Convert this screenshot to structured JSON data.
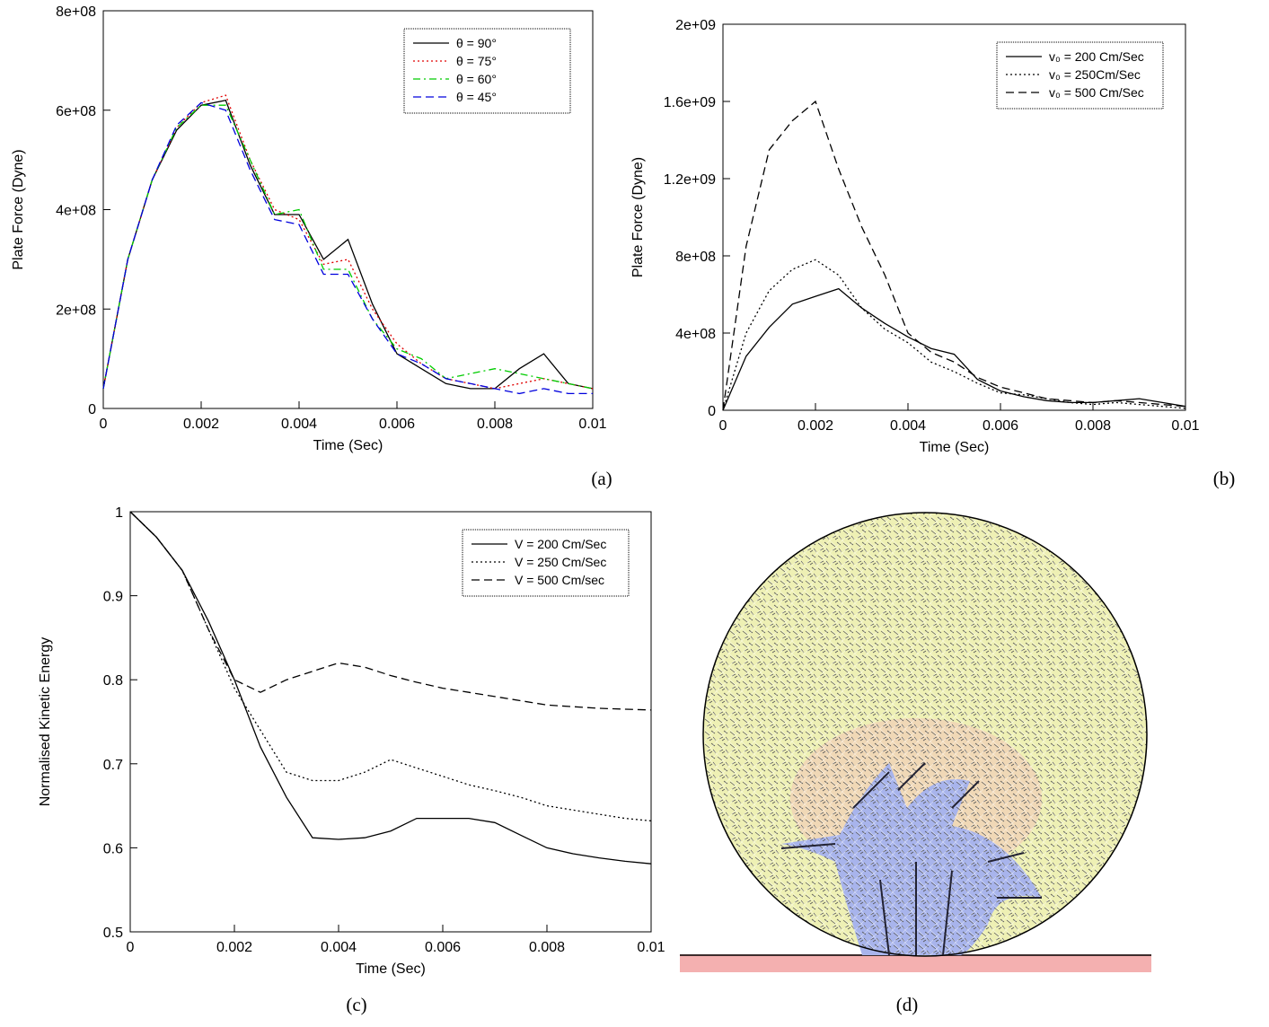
{
  "chart_data": [
    {
      "type": "line",
      "caption": "(a)",
      "x_label": "Time (Sec)",
      "y_label": "Plate Force (Dyne)",
      "x": [
        0,
        0.0005,
        0.001,
        0.0015,
        0.002,
        0.0025,
        0.003,
        0.0035,
        0.004,
        0.0045,
        0.005,
        0.0055,
        0.006,
        0.0065,
        0.007,
        0.0075,
        0.008,
        0.0085,
        0.009,
        0.0095,
        0.01
      ],
      "xlim": [
        0,
        0.01
      ],
      "xticks": [
        0,
        0.002,
        0.004,
        0.006,
        0.008,
        0.01
      ],
      "ylim": [
        0,
        800000000
      ],
      "yticks": [
        0,
        {
          "value": 200000000,
          "label": "2e+08"
        },
        {
          "value": 400000000,
          "label": "4e+08"
        },
        {
          "value": 600000000,
          "label": "6e+08"
        },
        {
          "value": 800000000,
          "label": "8e+08"
        }
      ],
      "legend": "upper right",
      "series": [
        {
          "name": "θ = 90°",
          "color": "#000000",
          "style": "solid",
          "values": [
            40000000,
            300000000,
            460000000,
            560000000,
            610000000,
            620000000,
            490000000,
            390000000,
            390000000,
            300000000,
            340000000,
            210000000,
            110000000,
            80000000,
            50000000,
            40000000,
            40000000,
            80000000,
            110000000,
            50000000,
            40000000
          ]
        },
        {
          "name": "θ = 75°",
          "color": "#e00000",
          "style": "dotted",
          "values": [
            40000000,
            300000000,
            460000000,
            565000000,
            615000000,
            630000000,
            500000000,
            400000000,
            380000000,
            290000000,
            300000000,
            200000000,
            130000000,
            90000000,
            60000000,
            50000000,
            40000000,
            50000000,
            60000000,
            50000000,
            40000000
          ]
        },
        {
          "name": "θ = 60°",
          "color": "#00cc00",
          "style": "dashdot",
          "values": [
            40000000,
            300000000,
            460000000,
            565000000,
            610000000,
            610000000,
            500000000,
            390000000,
            400000000,
            280000000,
            280000000,
            180000000,
            120000000,
            100000000,
            60000000,
            70000000,
            80000000,
            70000000,
            60000000,
            50000000,
            40000000
          ]
        },
        {
          "name": "θ = 45°",
          "color": "#0000dd",
          "style": "dashed",
          "values": [
            40000000,
            300000000,
            460000000,
            570000000,
            615000000,
            600000000,
            480000000,
            380000000,
            370000000,
            270000000,
            270000000,
            180000000,
            110000000,
            90000000,
            60000000,
            50000000,
            40000000,
            30000000,
            40000000,
            30000000,
            30000000
          ]
        }
      ]
    },
    {
      "type": "line",
      "caption": "(b)",
      "x_label": "Time (Sec)",
      "y_label": "Plate Force (Dyne)",
      "x": [
        0,
        0.0005,
        0.001,
        0.0015,
        0.002,
        0.0025,
        0.003,
        0.0035,
        0.004,
        0.0045,
        0.005,
        0.0055,
        0.006,
        0.0065,
        0.007,
        0.0075,
        0.008,
        0.0085,
        0.009,
        0.0095,
        0.01
      ],
      "xlim": [
        0,
        0.01
      ],
      "xticks": [
        0,
        0.002,
        0.004,
        0.006,
        0.008,
        0.01
      ],
      "ylim": [
        0,
        2000000000
      ],
      "yticks": [
        0,
        {
          "value": 400000000,
          "label": "4e+08"
        },
        {
          "value": 800000000,
          "label": "8e+08"
        },
        {
          "value": 1200000000,
          "label": "1.2e+09"
        },
        {
          "value": 1600000000,
          "label": "1.6e+09"
        },
        {
          "value": 2000000000,
          "label": "2e+09"
        }
      ],
      "legend": "upper right",
      "series": [
        {
          "name": "v₀ = 200 Cm/Sec",
          "color": "#000000",
          "style": "solid",
          "values": [
            0,
            280000000,
            430000000,
            550000000,
            590000000,
            630000000,
            530000000,
            450000000,
            380000000,
            320000000,
            290000000,
            160000000,
            100000000,
            70000000,
            50000000,
            40000000,
            40000000,
            50000000,
            60000000,
            40000000,
            20000000
          ]
        },
        {
          "name": "v₀ = 250Cm/Sec",
          "color": "#000000",
          "style": "dotted",
          "values": [
            0,
            400000000,
            620000000,
            730000000,
            780000000,
            700000000,
            530000000,
            420000000,
            350000000,
            250000000,
            200000000,
            140000000,
            90000000,
            80000000,
            60000000,
            40000000,
            30000000,
            40000000,
            30000000,
            20000000,
            10000000
          ]
        },
        {
          "name": "v₀ = 500 Cm/Sec",
          "color": "#000000",
          "style": "dashed",
          "values": [
            0,
            850000000,
            1350000000,
            1500000000,
            1600000000,
            1250000000,
            950000000,
            700000000,
            400000000,
            300000000,
            250000000,
            170000000,
            120000000,
            90000000,
            60000000,
            50000000,
            40000000,
            50000000,
            40000000,
            30000000,
            20000000
          ]
        }
      ]
    },
    {
      "type": "line",
      "caption": "(c)",
      "x_label": "Time (Sec)",
      "y_label": "Normalised Kinetic Energy",
      "x": [
        0,
        0.0005,
        0.001,
        0.0015,
        0.002,
        0.0025,
        0.003,
        0.0035,
        0.004,
        0.0045,
        0.005,
        0.0055,
        0.006,
        0.0065,
        0.007,
        0.0075,
        0.008,
        0.0085,
        0.009,
        0.0095,
        0.01
      ],
      "xlim": [
        0,
        0.01
      ],
      "xticks": [
        0,
        0.002,
        0.004,
        0.006,
        0.008,
        0.01
      ],
      "ylim": [
        0.5,
        1
      ],
      "yticks": [
        0.5,
        0.6,
        0.7,
        0.8,
        0.9,
        1
      ],
      "legend": "upper right",
      "series": [
        {
          "name": "V = 200 Cm/Sec",
          "color": "#000000",
          "style": "solid",
          "values": [
            1,
            0.97,
            0.93,
            0.87,
            0.8,
            0.72,
            0.66,
            0.612,
            0.61,
            0.612,
            0.62,
            0.635,
            0.635,
            0.635,
            0.63,
            0.615,
            0.6,
            0.593,
            0.588,
            0.584,
            0.581
          ]
        },
        {
          "name": "V = 250 Cm/Sec",
          "color": "#000000",
          "style": "dotted",
          "values": [
            1,
            0.97,
            0.93,
            0.86,
            0.79,
            0.74,
            0.69,
            0.68,
            0.68,
            0.69,
            0.705,
            0.695,
            0.685,
            0.675,
            0.668,
            0.66,
            0.65,
            0.645,
            0.64,
            0.635,
            0.632
          ]
        },
        {
          "name": "V = 500 Cm/sec",
          "color": "#000000",
          "style": "dashed",
          "values": [
            1,
            0.97,
            0.93,
            0.86,
            0.8,
            0.785,
            0.8,
            0.81,
            0.82,
            0.815,
            0.805,
            0.797,
            0.79,
            0.785,
            0.78,
            0.775,
            0.77,
            0.768,
            0.766,
            0.765,
            0.764
          ]
        }
      ]
    }
  ],
  "panel_d": {
    "caption": "(d)"
  }
}
